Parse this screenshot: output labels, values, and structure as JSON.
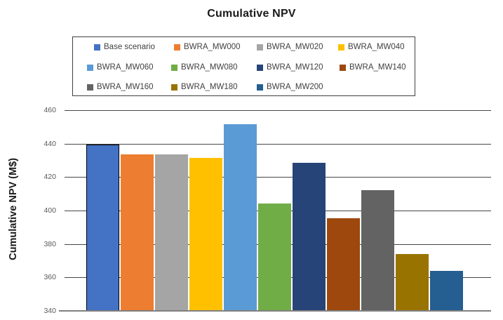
{
  "chart_data": {
    "type": "bar",
    "title": "Cumulative NPV",
    "xlabel": "",
    "ylabel": "Cumulative NPV (M$)",
    "ylim": [
      340,
      460
    ],
    "yticks": [
      460,
      440,
      420,
      400,
      380,
      360,
      340
    ],
    "grid": "horizontal",
    "legend_position": "top",
    "x_axis_labels": "none",
    "series": [
      {
        "name": "Base scenario",
        "value": 439.5,
        "color": "#4472C4",
        "outlined": true
      },
      {
        "name": "BWRA_MW000",
        "value": 433.5,
        "color": "#ED7D31"
      },
      {
        "name": "BWRA_MW020",
        "value": 433.5,
        "color": "#A5A5A5"
      },
      {
        "name": "BWRA_MW040",
        "value": 431.5,
        "color": "#FFC000"
      },
      {
        "name": "BWRA_MW060",
        "value": 451.5,
        "color": "#5B9BD5"
      },
      {
        "name": "BWRA_MW080",
        "value": 404,
        "color": "#70AD47"
      },
      {
        "name": "BWRA_MW120",
        "value": 428.5,
        "color": "#264478"
      },
      {
        "name": "BWRA_MW140",
        "value": 395.5,
        "color": "#9E480E"
      },
      {
        "name": "BWRA_MW160",
        "value": 412,
        "color": "#636363"
      },
      {
        "name": "BWRA_MW180",
        "value": 374,
        "color": "#997300"
      },
      {
        "name": "BWRA_MW200",
        "value": 364,
        "color": "#255E91"
      }
    ],
    "legend_rows": [
      [
        0,
        1,
        2,
        3
      ],
      [
        4,
        5,
        6,
        7
      ],
      [
        8,
        9,
        10
      ]
    ]
  }
}
